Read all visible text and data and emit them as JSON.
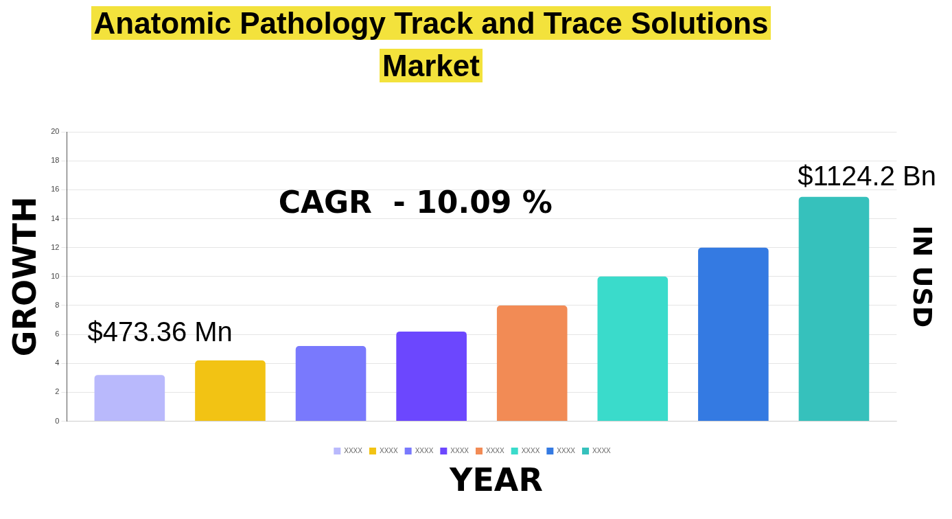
{
  "chart_data": {
    "type": "bar",
    "title": "Anatomic Pathology Track and Trace Solutions Market",
    "xlabel": "YEAR",
    "ylabel": "GROWTH",
    "y2label": "IN USD",
    "categories": [
      null
    ],
    "series": [
      {
        "name": "XXXX",
        "color": "#b9b9fc",
        "values": [
          3.2
        ]
      },
      {
        "name": "XXXX",
        "color": "#f2c314",
        "values": [
          4.2
        ]
      },
      {
        "name": "XXXX",
        "color": "#7979fd",
        "values": [
          5.2
        ]
      },
      {
        "name": "XXXX",
        "color": "#6c47fe",
        "values": [
          6.2
        ]
      },
      {
        "name": "XXXX",
        "color": "#f28b55",
        "values": [
          8
        ]
      },
      {
        "name": "XXXX",
        "color": "#3adbcb",
        "values": [
          10
        ]
      },
      {
        "name": "XXXX",
        "color": "#347ae2",
        "values": [
          12
        ]
      },
      {
        "name": "XXXX",
        "color": "#36c1bc",
        "values": [
          15.5
        ]
      }
    ],
    "ylim": [
      0,
      20
    ],
    "yticks": [
      0,
      2,
      4,
      6,
      8,
      10,
      12,
      14,
      16,
      18,
      20
    ],
    "grid": "y",
    "legend": "bottom",
    "annotations": [
      "CAGR  - 10.09 %",
      "$473.36 Mn",
      "$1124.2 Bn"
    ]
  }
}
